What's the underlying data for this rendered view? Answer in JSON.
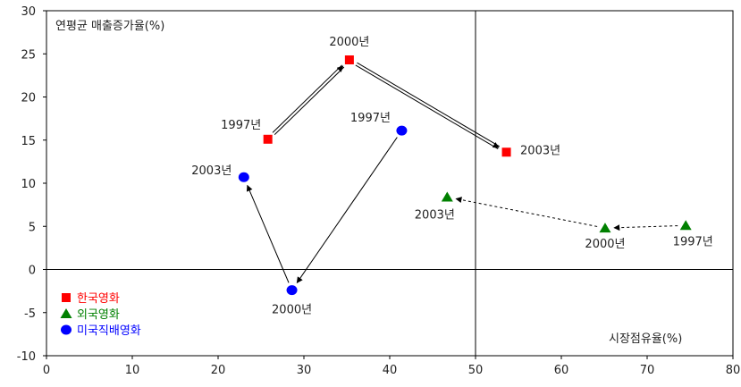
{
  "chart_data": {
    "type": "scatter",
    "title": "",
    "ylabel": "연평균 매출증가율(%)",
    "xlabel": "시장점유율(%)",
    "xlim": [
      0,
      80
    ],
    "ylim": [
      -10,
      30
    ],
    "x_ticks": [
      0,
      10,
      20,
      30,
      40,
      50,
      60,
      70,
      80
    ],
    "y_ticks": [
      -10,
      -5,
      0,
      5,
      10,
      15,
      20,
      25,
      30
    ],
    "grid": false,
    "quadrant_lines": {
      "x": 50,
      "y": 0
    },
    "legend_position": "bottom-left",
    "series": [
      {
        "name": "한국영화",
        "marker": "square",
        "color": "#ff0000",
        "points": [
          {
            "label": "1997년",
            "x": 25.8,
            "y": 15.1
          },
          {
            "label": "2000년",
            "x": 35.3,
            "y": 24.3
          },
          {
            "label": "2003년",
            "x": 53.6,
            "y": 13.6
          }
        ],
        "connector": "double-arrow"
      },
      {
        "name": "외국영화",
        "marker": "triangle",
        "color": "#008000",
        "points": [
          {
            "label": "1997년",
            "x": 74.5,
            "y": 5.1
          },
          {
            "label": "2000년",
            "x": 65.1,
            "y": 4.8
          },
          {
            "label": "2003년",
            "x": 46.7,
            "y": 8.4
          }
        ],
        "connector": "dashed-arrow"
      },
      {
        "name": "미국직배영화",
        "marker": "circle",
        "color": "#0000ff",
        "points": [
          {
            "label": "1997년",
            "x": 41.4,
            "y": 16.1
          },
          {
            "label": "2000년",
            "x": 28.6,
            "y": -2.4
          },
          {
            "label": "2003년",
            "x": 23.0,
            "y": 10.7
          }
        ],
        "connector": "solid-arrow"
      }
    ]
  }
}
